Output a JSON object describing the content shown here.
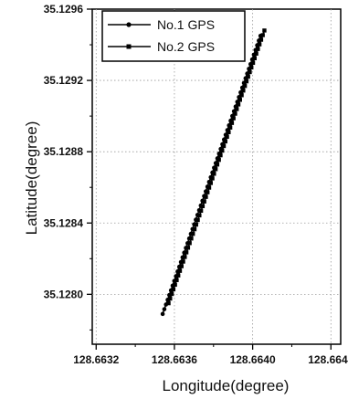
{
  "chart_data": {
    "type": "scatter",
    "xlabel": "Longitude(degree)",
    "ylabel": "Latitude(degree)",
    "xlim": [
      128.66318,
      128.66445
    ],
    "ylim": [
      35.12772,
      35.1296
    ],
    "grid": true,
    "legend_placement": "top-left",
    "x_ticks": [
      128.6632,
      128.6636,
      128.664,
      128.6644
    ],
    "x_tick_labels": [
      "128.6632",
      "128.6636",
      "128.6640",
      "128.6644"
    ],
    "y_ticks": [
      35.128,
      35.1284,
      35.1288,
      35.1292,
      35.1296
    ],
    "y_tick_labels": [
      "35.1280",
      "35.1284",
      "35.1288",
      "35.1292",
      "35.1296"
    ],
    "series": [
      {
        "name": "No.1 GPS",
        "marker": "circle",
        "color": "#000000",
        "start": [
          128.66354,
          128.66404
        ],
        "end": [
          35.12789,
          35.12945
        ],
        "n_points": 60
      },
      {
        "name": "No.2 GPS",
        "marker": "square",
        "color": "#000000",
        "start": [
          128.66357,
          128.66406
        ],
        "end": [
          35.12795,
          35.12948
        ],
        "n_points": 60
      }
    ]
  }
}
